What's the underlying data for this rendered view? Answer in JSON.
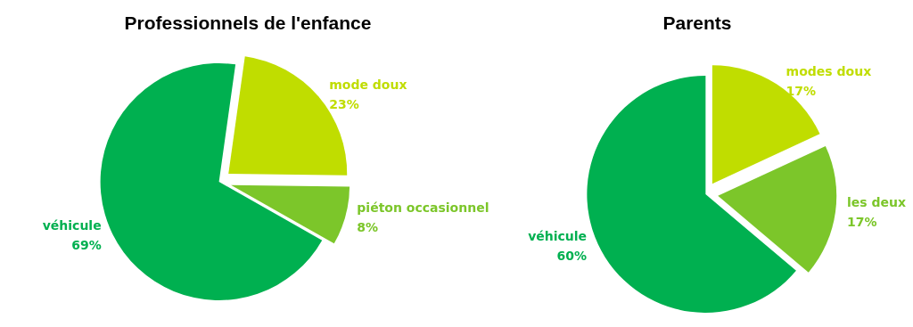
{
  "chart_data": [
    {
      "type": "pie",
      "title": "Professionnels de l'enfance",
      "categories": [
        "mode doux",
        "piéton occasionnel",
        "véhicule"
      ],
      "values": [
        23,
        8,
        69
      ],
      "colors": [
        "#c0dd00",
        "#7cc62a",
        "#00b050"
      ],
      "value_labels": [
        "23%",
        "8%",
        "69%"
      ]
    },
    {
      "type": "pie",
      "title": "Parents",
      "categories": [
        "modes doux",
        "les deux",
        "véhicule"
      ],
      "values": [
        17,
        17,
        60
      ],
      "colors": [
        "#c0dd00",
        "#7cc62a",
        "#00b050"
      ],
      "value_labels": [
        "17%",
        "17%",
        "60%"
      ]
    }
  ]
}
